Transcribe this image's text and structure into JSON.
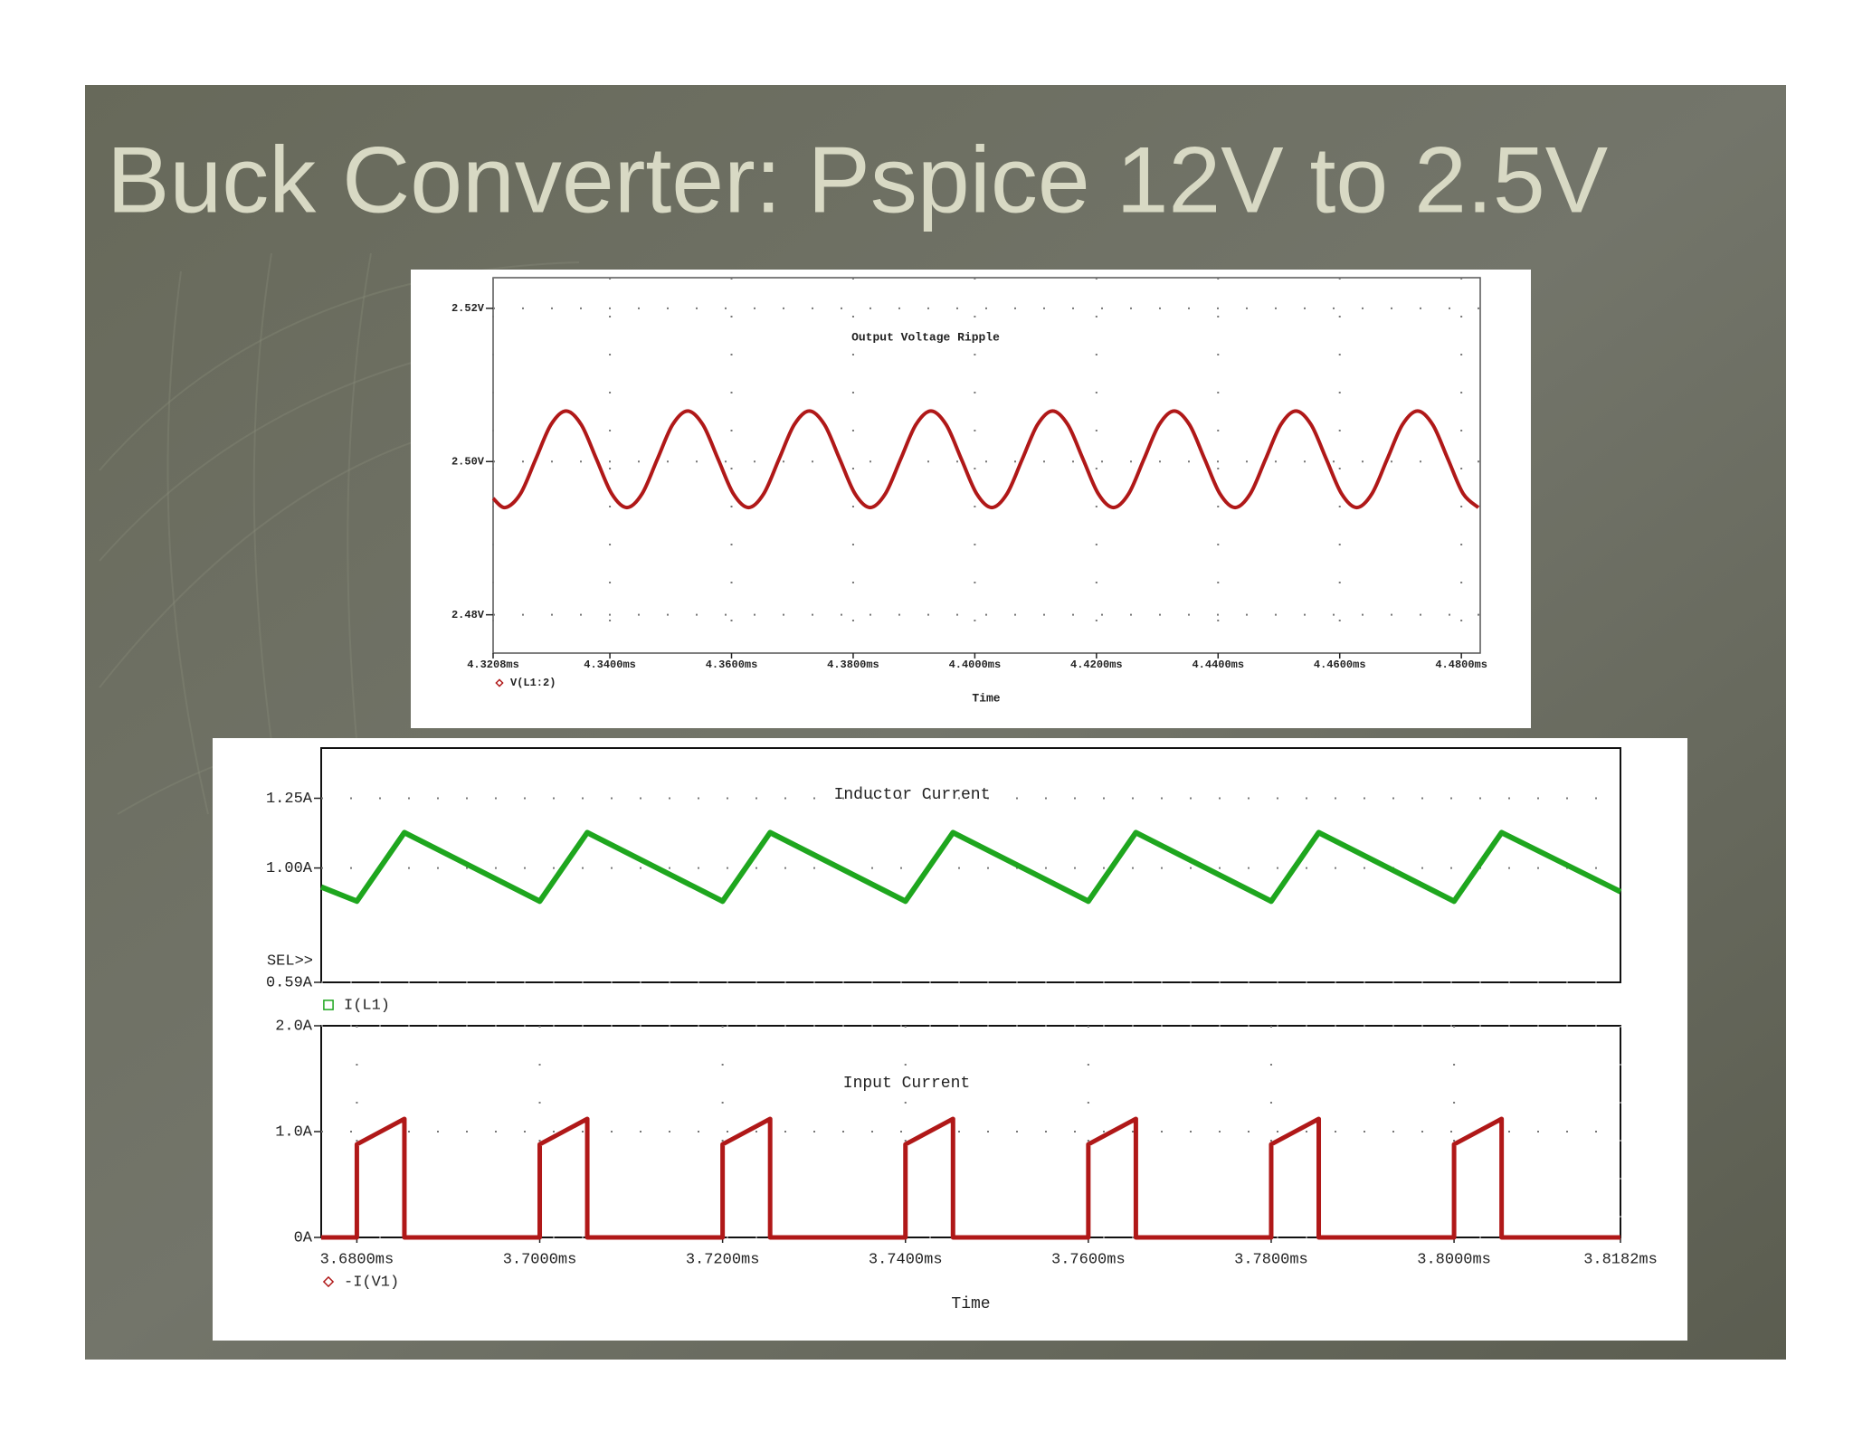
{
  "title": "Buck Converter: Pspice 12V to 2.5V",
  "chart_data": [
    {
      "type": "line",
      "title": "Output Voltage Ripple",
      "x_label": "Time",
      "grid": true,
      "xlim": [
        4.3208,
        4.4831
      ],
      "ylim": [
        2.475,
        2.524
      ],
      "xticks": [
        {
          "value": 4.3208,
          "label": "4.3208ms"
        },
        {
          "value": 4.34,
          "label": "4.3400ms"
        },
        {
          "value": 4.36,
          "label": "4.3600ms"
        },
        {
          "value": 4.38,
          "label": "4.3800ms"
        },
        {
          "value": 4.4,
          "label": "4.4000ms"
        },
        {
          "value": 4.42,
          "label": "4.4200ms"
        },
        {
          "value": 4.44,
          "label": "4.4400ms"
        },
        {
          "value": 4.46,
          "label": "4.4600ms"
        },
        {
          "value": 4.48,
          "label": "4.4800ms"
        }
      ],
      "yticks": [
        {
          "value": 2.48,
          "label": "2.48V"
        },
        {
          "value": 2.5,
          "label": "2.50V"
        },
        {
          "value": 2.52,
          "label": "2.52V"
        }
      ],
      "x": [
        4.3208,
        4.3228,
        4.3253,
        4.3278,
        4.3303,
        4.3328,
        4.3353,
        4.3378,
        4.3403,
        4.3428,
        4.3453,
        4.3478,
        4.3503,
        4.3528,
        4.3553,
        4.3578,
        4.3603,
        4.3628,
        4.3653,
        4.3678,
        4.3703,
        4.3728,
        4.3753,
        4.3778,
        4.3803,
        4.3828,
        4.3853,
        4.3878,
        4.3903,
        4.3928,
        4.3953,
        4.3978,
        4.4003,
        4.4028,
        4.4053,
        4.4078,
        4.4103,
        4.4128,
        4.4153,
        4.4178,
        4.4203,
        4.4228,
        4.4253,
        4.4278,
        4.4303,
        4.4328,
        4.4353,
        4.4378,
        4.4403,
        4.4428,
        4.4453,
        4.4478,
        4.4503,
        4.4528,
        4.4553,
        4.4578,
        4.4603,
        4.4628,
        4.4653,
        4.4678,
        4.4703,
        4.4728,
        4.4753,
        4.4778,
        4.4803,
        4.4828
      ],
      "series": [
        {
          "name": "V(L1:2)",
          "color": "#b01818",
          "legend_marker": "diamond",
          "values": [
            2.4952,
            2.494,
            2.4958,
            2.5003,
            2.5048,
            2.5066,
            2.5048,
            2.5003,
            2.4958,
            2.494,
            2.4958,
            2.5003,
            2.5048,
            2.5066,
            2.5048,
            2.5003,
            2.4958,
            2.494,
            2.4958,
            2.5003,
            2.5048,
            2.5066,
            2.5048,
            2.5003,
            2.4958,
            2.494,
            2.4958,
            2.5003,
            2.5048,
            2.5066,
            2.5048,
            2.5003,
            2.4958,
            2.494,
            2.4958,
            2.5003,
            2.5048,
            2.5066,
            2.5048,
            2.5003,
            2.4958,
            2.494,
            2.4958,
            2.5003,
            2.5048,
            2.5066,
            2.5048,
            2.5003,
            2.4958,
            2.494,
            2.4958,
            2.5003,
            2.5048,
            2.5066,
            2.5048,
            2.5003,
            2.4958,
            2.494,
            2.4958,
            2.5003,
            2.5048,
            2.5066,
            2.5048,
            2.5003,
            2.4958,
            2.494
          ]
        }
      ]
    },
    {
      "type": "line",
      "title": "Inductor Current",
      "selector_label": "SEL>>",
      "grid": true,
      "xlim": [
        3.6761,
        3.8182
      ],
      "ylim": [
        0.59,
        1.43
      ],
      "yticks": [
        {
          "value": 0.59,
          "label": "0.59A"
        },
        {
          "value": 1.0,
          "label": "1.00A"
        },
        {
          "value": 1.25,
          "label": "1.25A"
        }
      ],
      "x": [
        3.6761,
        3.68,
        3.6852,
        3.7,
        3.7052,
        3.72,
        3.7252,
        3.74,
        3.7452,
        3.76,
        3.7652,
        3.78,
        3.7852,
        3.8,
        3.8052,
        3.8182
      ],
      "series": [
        {
          "name": "I(L1)",
          "color": "#1ea61e",
          "legend_marker": "square",
          "values": [
            0.932,
            0.881,
            1.127,
            0.881,
            1.127,
            0.881,
            1.127,
            0.881,
            1.127,
            0.881,
            1.127,
            0.881,
            1.127,
            0.881,
            1.127,
            0.915
          ]
        }
      ]
    },
    {
      "type": "line",
      "title": "Input Current",
      "x_label": "Time",
      "grid": true,
      "xlim": [
        3.6761,
        3.8182
      ],
      "ylim": [
        0,
        2.0
      ],
      "xticks": [
        {
          "value": 3.68,
          "label": "3.6800ms"
        },
        {
          "value": 3.7,
          "label": "3.7000ms"
        },
        {
          "value": 3.72,
          "label": "3.7200ms"
        },
        {
          "value": 3.74,
          "label": "3.7400ms"
        },
        {
          "value": 3.76,
          "label": "3.7600ms"
        },
        {
          "value": 3.78,
          "label": "3.7800ms"
        },
        {
          "value": 3.8,
          "label": "3.8000ms"
        },
        {
          "value": 3.8182,
          "label": "3.8182ms"
        }
      ],
      "yticks": [
        {
          "value": 0,
          "label": "0A"
        },
        {
          "value": 1.0,
          "label": "1.0A"
        },
        {
          "value": 2.0,
          "label": "2.0A"
        }
      ],
      "x": [
        3.6761,
        3.68,
        3.68,
        3.6852,
        3.6852,
        3.7,
        3.7,
        3.7052,
        3.7052,
        3.72,
        3.72,
        3.7252,
        3.7252,
        3.74,
        3.74,
        3.7452,
        3.7452,
        3.76,
        3.76,
        3.7652,
        3.7652,
        3.78,
        3.78,
        3.7852,
        3.7852,
        3.8,
        3.8,
        3.8052,
        3.8052,
        3.8182
      ],
      "series": [
        {
          "name": "-I(V1)",
          "color": "#b01818",
          "legend_marker": "diamond",
          "values": [
            0,
            0,
            0.88,
            1.12,
            0,
            0,
            0.88,
            1.12,
            0,
            0,
            0.88,
            1.12,
            0,
            0,
            0.88,
            1.12,
            0,
            0,
            0.88,
            1.12,
            0,
            0,
            0.88,
            1.12,
            0,
            0,
            0.88,
            1.12,
            0,
            0
          ]
        }
      ]
    }
  ]
}
